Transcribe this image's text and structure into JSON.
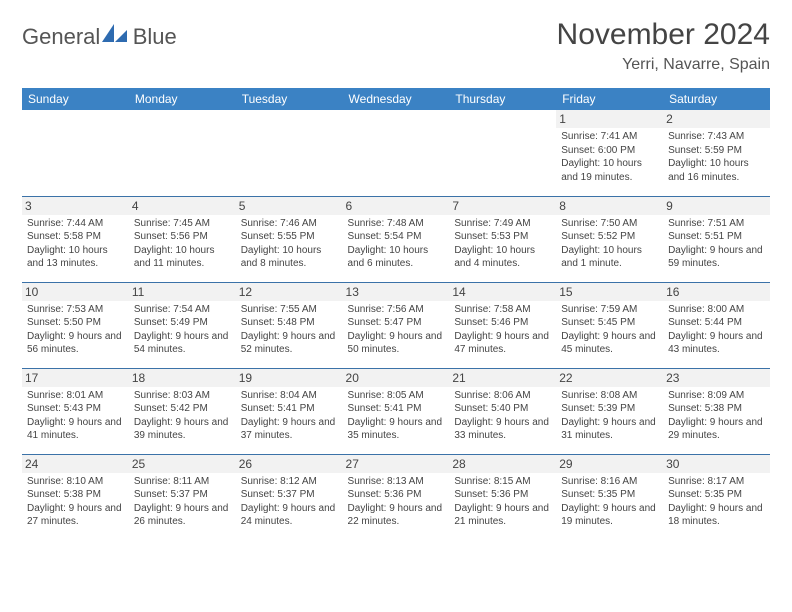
{
  "brand": {
    "general": "General",
    "blue": "Blue"
  },
  "header": {
    "title": "November 2024",
    "location": "Yerri, Navarre, Spain"
  },
  "colors": {
    "header_bg": "#3b82c4",
    "header_fg": "#ffffff",
    "row_border": "#3b72a8",
    "daynum_bg": "#f2f2f2",
    "text": "#444444",
    "logo_blue": "#3b7fc4"
  },
  "weekdays": [
    "Sunday",
    "Monday",
    "Tuesday",
    "Wednesday",
    "Thursday",
    "Friday",
    "Saturday"
  ],
  "weeks": [
    [
      {
        "day": null
      },
      {
        "day": null
      },
      {
        "day": null
      },
      {
        "day": null
      },
      {
        "day": null
      },
      {
        "day": 1,
        "sunrise": "7:41 AM",
        "sunset": "6:00 PM",
        "daylight": "10 hours and 19 minutes."
      },
      {
        "day": 2,
        "sunrise": "7:43 AM",
        "sunset": "5:59 PM",
        "daylight": "10 hours and 16 minutes."
      }
    ],
    [
      {
        "day": 3,
        "sunrise": "7:44 AM",
        "sunset": "5:58 PM",
        "daylight": "10 hours and 13 minutes."
      },
      {
        "day": 4,
        "sunrise": "7:45 AM",
        "sunset": "5:56 PM",
        "daylight": "10 hours and 11 minutes."
      },
      {
        "day": 5,
        "sunrise": "7:46 AM",
        "sunset": "5:55 PM",
        "daylight": "10 hours and 8 minutes."
      },
      {
        "day": 6,
        "sunrise": "7:48 AM",
        "sunset": "5:54 PM",
        "daylight": "10 hours and 6 minutes."
      },
      {
        "day": 7,
        "sunrise": "7:49 AM",
        "sunset": "5:53 PM",
        "daylight": "10 hours and 4 minutes."
      },
      {
        "day": 8,
        "sunrise": "7:50 AM",
        "sunset": "5:52 PM",
        "daylight": "10 hours and 1 minute."
      },
      {
        "day": 9,
        "sunrise": "7:51 AM",
        "sunset": "5:51 PM",
        "daylight": "9 hours and 59 minutes."
      }
    ],
    [
      {
        "day": 10,
        "sunrise": "7:53 AM",
        "sunset": "5:50 PM",
        "daylight": "9 hours and 56 minutes."
      },
      {
        "day": 11,
        "sunrise": "7:54 AM",
        "sunset": "5:49 PM",
        "daylight": "9 hours and 54 minutes."
      },
      {
        "day": 12,
        "sunrise": "7:55 AM",
        "sunset": "5:48 PM",
        "daylight": "9 hours and 52 minutes."
      },
      {
        "day": 13,
        "sunrise": "7:56 AM",
        "sunset": "5:47 PM",
        "daylight": "9 hours and 50 minutes."
      },
      {
        "day": 14,
        "sunrise": "7:58 AM",
        "sunset": "5:46 PM",
        "daylight": "9 hours and 47 minutes."
      },
      {
        "day": 15,
        "sunrise": "7:59 AM",
        "sunset": "5:45 PM",
        "daylight": "9 hours and 45 minutes."
      },
      {
        "day": 16,
        "sunrise": "8:00 AM",
        "sunset": "5:44 PM",
        "daylight": "9 hours and 43 minutes."
      }
    ],
    [
      {
        "day": 17,
        "sunrise": "8:01 AM",
        "sunset": "5:43 PM",
        "daylight": "9 hours and 41 minutes."
      },
      {
        "day": 18,
        "sunrise": "8:03 AM",
        "sunset": "5:42 PM",
        "daylight": "9 hours and 39 minutes."
      },
      {
        "day": 19,
        "sunrise": "8:04 AM",
        "sunset": "5:41 PM",
        "daylight": "9 hours and 37 minutes."
      },
      {
        "day": 20,
        "sunrise": "8:05 AM",
        "sunset": "5:41 PM",
        "daylight": "9 hours and 35 minutes."
      },
      {
        "day": 21,
        "sunrise": "8:06 AM",
        "sunset": "5:40 PM",
        "daylight": "9 hours and 33 minutes."
      },
      {
        "day": 22,
        "sunrise": "8:08 AM",
        "sunset": "5:39 PM",
        "daylight": "9 hours and 31 minutes."
      },
      {
        "day": 23,
        "sunrise": "8:09 AM",
        "sunset": "5:38 PM",
        "daylight": "9 hours and 29 minutes."
      }
    ],
    [
      {
        "day": 24,
        "sunrise": "8:10 AM",
        "sunset": "5:38 PM",
        "daylight": "9 hours and 27 minutes."
      },
      {
        "day": 25,
        "sunrise": "8:11 AM",
        "sunset": "5:37 PM",
        "daylight": "9 hours and 26 minutes."
      },
      {
        "day": 26,
        "sunrise": "8:12 AM",
        "sunset": "5:37 PM",
        "daylight": "9 hours and 24 minutes."
      },
      {
        "day": 27,
        "sunrise": "8:13 AM",
        "sunset": "5:36 PM",
        "daylight": "9 hours and 22 minutes."
      },
      {
        "day": 28,
        "sunrise": "8:15 AM",
        "sunset": "5:36 PM",
        "daylight": "9 hours and 21 minutes."
      },
      {
        "day": 29,
        "sunrise": "8:16 AM",
        "sunset": "5:35 PM",
        "daylight": "9 hours and 19 minutes."
      },
      {
        "day": 30,
        "sunrise": "8:17 AM",
        "sunset": "5:35 PM",
        "daylight": "9 hours and 18 minutes."
      }
    ]
  ],
  "labels": {
    "sunrise": "Sunrise: ",
    "sunset": "Sunset: ",
    "daylight": "Daylight: "
  }
}
